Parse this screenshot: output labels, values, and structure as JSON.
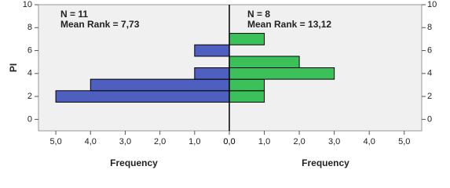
{
  "chart_data": [
    {
      "type": "bar",
      "orientation": "horizontal",
      "y_label": "PI",
      "x_label": "Frequency",
      "annotations": [
        "N = 11",
        "Mean Rank = 7,73"
      ],
      "y": [
        2,
        3,
        4,
        6
      ],
      "values": [
        5,
        4,
        1,
        1
      ],
      "color": "#4f5fbf",
      "xlim": [
        5.5,
        0
      ],
      "xticks": [
        {
          "value": 5,
          "label": "5,0"
        },
        {
          "value": 4,
          "label": "4,0"
        },
        {
          "value": 3,
          "label": "3,0"
        },
        {
          "value": 2,
          "label": "2,0"
        },
        {
          "value": 1,
          "label": "1,0"
        },
        {
          "value": 0,
          "label": "0,0"
        }
      ],
      "ylim": [
        -1,
        10
      ],
      "yticks": [
        0,
        2,
        4,
        6,
        8,
        10
      ],
      "ytick_side": "left"
    },
    {
      "type": "bar",
      "orientation": "horizontal",
      "x_label": "Frequency",
      "annotations": [
        "N = 8",
        "Mean Rank = 13,12"
      ],
      "y": [
        2,
        3,
        4,
        5,
        7
      ],
      "values": [
        1,
        1,
        3,
        2,
        1
      ],
      "color": "#3cc05a",
      "xlim": [
        0,
        5.5
      ],
      "xticks": [
        {
          "value": 0,
          "label": "0,0"
        },
        {
          "value": 1,
          "label": "1,0"
        },
        {
          "value": 2,
          "label": "2,0"
        },
        {
          "value": 3,
          "label": "3,0"
        },
        {
          "value": 4,
          "label": "4,0"
        },
        {
          "value": 5,
          "label": "5,0"
        }
      ],
      "ylim": [
        -1,
        10
      ],
      "yticks": [
        0,
        2,
        4,
        6,
        8,
        10
      ],
      "ytick_side": "right"
    }
  ]
}
